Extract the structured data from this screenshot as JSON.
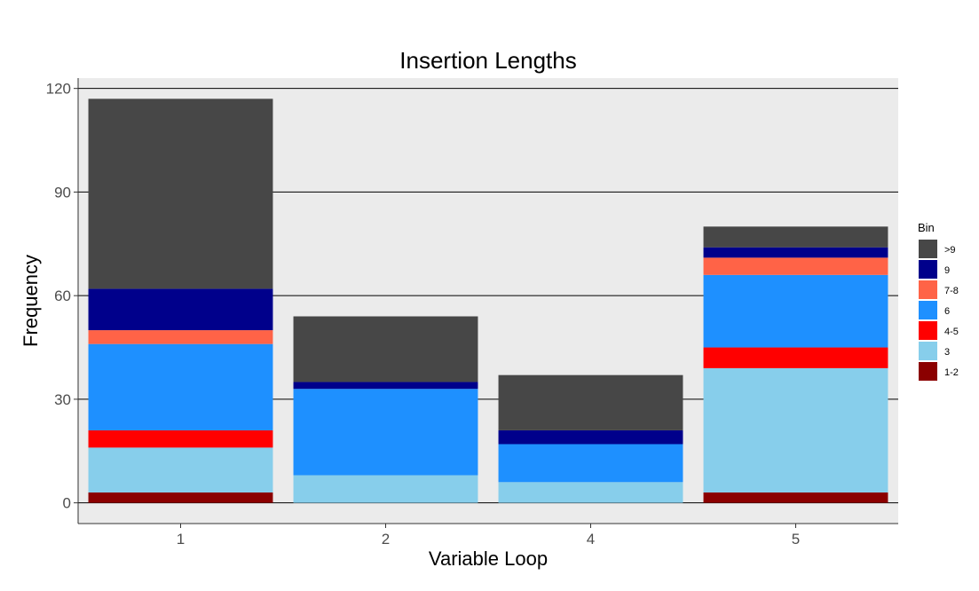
{
  "chart_data": {
    "type": "bar",
    "stacked": true,
    "title": "Insertion Lengths",
    "xlabel": "Variable Loop",
    "ylabel": "Frequency",
    "categories": [
      "1",
      "2",
      "4",
      "5"
    ],
    "ylim": [
      -6,
      123
    ],
    "yticks": [
      0,
      30,
      60,
      90,
      120
    ],
    "grid": "horizontal",
    "legend": {
      "title": "Bin",
      "position": "right"
    },
    "series": [
      {
        "name": "1-2",
        "color": "#8B0000",
        "values": [
          3,
          0,
          0,
          3
        ]
      },
      {
        "name": "3",
        "color": "#87CEEB",
        "values": [
          13,
          8,
          6,
          36
        ]
      },
      {
        "name": "4-5",
        "color": "#FF0000",
        "values": [
          5,
          0,
          0,
          6
        ]
      },
      {
        "name": "6",
        "color": "#1E90FF",
        "values": [
          25,
          25,
          11,
          21
        ]
      },
      {
        "name": "7-8",
        "color": "#FF6347",
        "values": [
          4,
          0,
          0,
          5
        ]
      },
      {
        "name": "9",
        "color": "#00008B",
        "values": [
          12,
          2,
          4,
          3
        ]
      },
      {
        "name": ">9",
        "color": "#474747",
        "values": [
          55,
          19,
          16,
          6
        ]
      }
    ]
  }
}
